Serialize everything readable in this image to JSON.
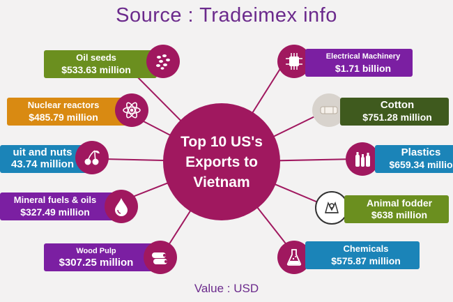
{
  "header": {
    "title": "Source : Tradeimex info"
  },
  "hub": {
    "line1": "Top 10 US's",
    "line2": "Exports to",
    "line3": "Vietnam"
  },
  "footer": {
    "text": "Value : USD"
  },
  "colors": {
    "hub": "#a0185f",
    "green": "#6b8f1f",
    "orange": "#d98a12",
    "blue": "#1b84b8",
    "purple": "#7b1fa2",
    "darkgreen": "#3f5a1e"
  },
  "items": [
    {
      "name": "Oil seeds",
      "value": "$533.63 million",
      "icon": "seeds-icon"
    },
    {
      "name": "Nuclear reactors",
      "value": "$485.79 million",
      "icon": "atom-icon"
    },
    {
      "name": "uit and nuts",
      "value": "43.74 million",
      "icon": "cherries-icon"
    },
    {
      "name": "Mineral fuels & oils",
      "value": "$327.49 million",
      "icon": "oil-drop-icon"
    },
    {
      "name": "Wood Pulp",
      "value": "$307.25 million",
      "icon": "logs-icon"
    },
    {
      "name": "Electrical Machinery",
      "value": "$1.71 billion",
      "icon": "chip-icon"
    },
    {
      "name": "Cotton",
      "value": "$751.28 million",
      "icon": "cotton-bale-icon"
    },
    {
      "name": "Plastics",
      "value": "$659.34 millio",
      "icon": "plastic-bottles-icon"
    },
    {
      "name": "Animal fodder",
      "value": "$638 million",
      "icon": "fodder-icon"
    },
    {
      "name": "Chemicals",
      "value": "$575.87 million",
      "icon": "flask-icon"
    }
  ]
}
